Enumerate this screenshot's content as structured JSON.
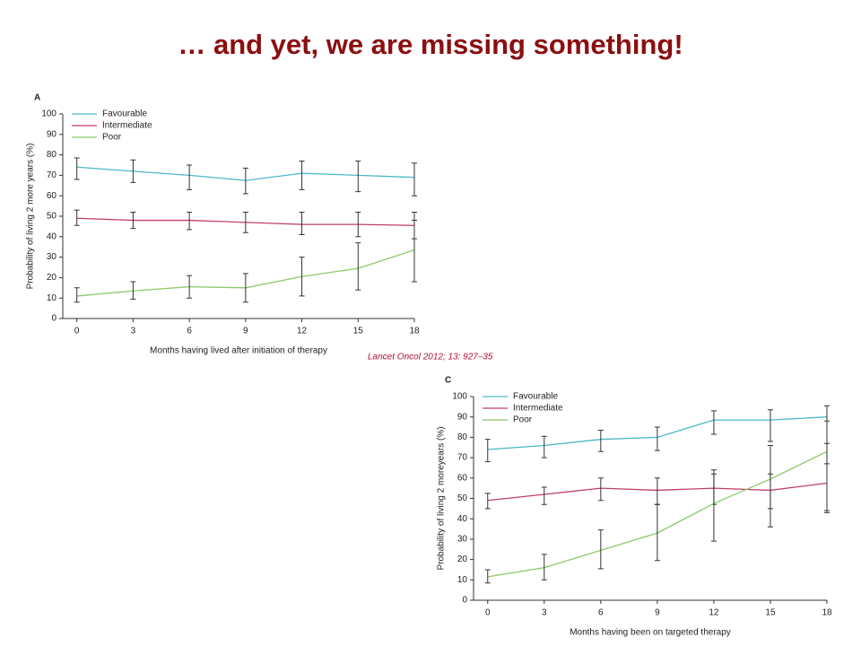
{
  "title": "… and yet, we are missing something!",
  "citation": "Lancet Oncol 2012; 13: 927–35",
  "chart_data": [
    {
      "type": "line",
      "panel": "A",
      "x_label": "Months having lived after initiation of therapy",
      "y_label": "Probability of living 2 more years (%)",
      "x": [
        0,
        3,
        6,
        9,
        12,
        15,
        18
      ],
      "xlim": [
        -0.75,
        18
      ],
      "xticks": [
        0,
        3,
        6,
        9,
        12,
        15,
        18
      ],
      "ylim": [
        0,
        100
      ],
      "yticks": [
        0,
        10,
        20,
        30,
        40,
        50,
        60,
        70,
        80,
        90,
        100
      ],
      "series": [
        {
          "name": "Favourable",
          "color": "#4bb8c8",
          "values": [
            74,
            72,
            70,
            67.5,
            71,
            70,
            69
          ],
          "ci_low": [
            68,
            66.5,
            63,
            61,
            63,
            62,
            60
          ],
          "ci_high": [
            78.5,
            77.5,
            75,
            73.5,
            77,
            77,
            76
          ]
        },
        {
          "name": "Intermediate",
          "color": "#c0406a",
          "values": [
            49,
            48,
            48,
            47,
            46,
            46,
            45.5
          ],
          "ci_low": [
            45.5,
            44,
            43.5,
            42,
            41,
            40,
            39
          ],
          "ci_high": [
            53,
            52,
            52,
            52,
            52,
            52,
            52
          ]
        },
        {
          "name": "Poor",
          "color": "#8cc86a",
          "values": [
            11,
            13.5,
            15.5,
            15,
            20.5,
            24.5,
            33.5
          ],
          "ci_low": [
            8,
            9.5,
            10,
            8,
            11,
            14,
            18
          ],
          "ci_high": [
            15,
            18,
            21,
            22,
            30,
            37,
            48
          ]
        }
      ]
    },
    {
      "type": "line",
      "panel": "C",
      "x_label": "Months having been on targeted therapy",
      "y_label": "Probability of living 2 moreyears (%)",
      "x": [
        0,
        3,
        6,
        9,
        12,
        15,
        18
      ],
      "xlim": [
        -0.75,
        18
      ],
      "xticks": [
        0,
        3,
        6,
        9,
        12,
        15,
        18
      ],
      "ylim": [
        0,
        100
      ],
      "yticks": [
        0,
        10,
        20,
        30,
        40,
        50,
        60,
        70,
        80,
        90,
        100
      ],
      "series": [
        {
          "name": "Favourable",
          "color": "#4bb8c8",
          "values": [
            74,
            76,
            79,
            80,
            88.5,
            88.5,
            90
          ],
          "ci_low": [
            68,
            70,
            73,
            73.5,
            81.5,
            78,
            77
          ],
          "ci_high": [
            79,
            80.5,
            83.5,
            85,
            93,
            93.5,
            95.5
          ]
        },
        {
          "name": "Intermediate",
          "color": "#c0406a",
          "values": [
            49,
            52,
            55,
            54,
            55,
            54,
            57.5
          ],
          "ci_low": [
            45,
            47,
            49,
            47,
            47,
            45,
            44
          ],
          "ci_high": [
            52.5,
            55.5,
            60,
            60,
            62,
            62,
            67
          ]
        },
        {
          "name": "Poor",
          "color": "#8cc86a",
          "values": [
            11.5,
            16,
            24.5,
            33,
            47.5,
            59.5,
            73
          ],
          "ci_low": [
            8.5,
            10,
            15.5,
            19.5,
            29,
            36,
            43
          ],
          "ci_high": [
            15,
            22.5,
            34.5,
            47,
            64,
            76,
            88
          ]
        }
      ]
    }
  ]
}
